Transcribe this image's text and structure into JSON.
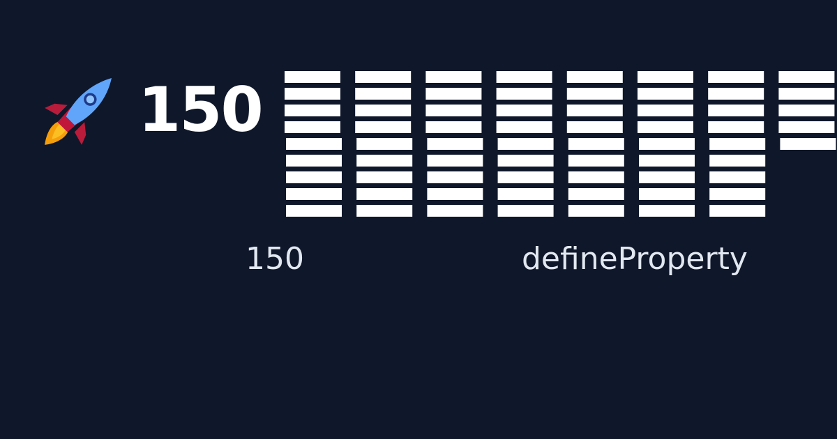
{
  "badge": {
    "icon": "rocket-icon",
    "headline_value": "150"
  },
  "captions": {
    "left": "150",
    "right": "defineProperty"
  },
  "stripe_columns": {
    "count": 8,
    "rows_per_column": [
      9,
      9,
      9,
      9,
      9,
      9,
      9,
      5
    ],
    "color": "#ffffff"
  },
  "colors": {
    "background": "#0f172a",
    "text": "#e2e8f0"
  }
}
